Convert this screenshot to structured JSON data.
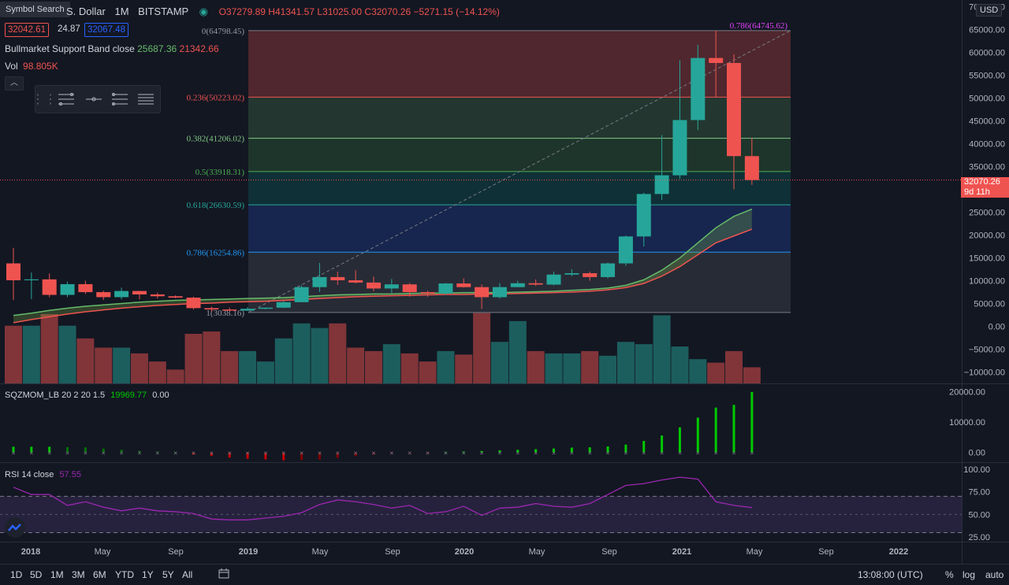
{
  "symbol_search_label": "Symbol Search",
  "header": {
    "symbol_text": "S. Dollar",
    "interval": "1M",
    "exchange": "BITSTAMP",
    "ohlc": "O37279.89 H41341.57 L31025.00 C32070.26 −5271.15 (−14.12%)"
  },
  "bid_price": "32042.61",
  "spread": "24.87",
  "ask_price": "32067.48",
  "indicators": {
    "bullmarket_band": {
      "name": "Bullmarket Support Band",
      "source": "close",
      "v1": "25687.36",
      "v2": "21342.66"
    },
    "vol": {
      "name": "Vol",
      "value": "98.805K"
    },
    "sqzmom": {
      "name": "SQZMOM_LB 20 2 20 1.5",
      "v1": "19969.77",
      "v2": "0.00"
    },
    "rsi": {
      "name": "RSI 14 close",
      "value": "57.55"
    }
  },
  "currency": "USD",
  "last_price": {
    "value": "32070.26",
    "countdown": "9d 11h",
    "color": "#ef5350"
  },
  "timeframes": [
    "1D",
    "5D",
    "1M",
    "3M",
    "6M",
    "YTD",
    "1Y",
    "5Y",
    "All"
  ],
  "bottom_right": {
    "time": "13:08:00 (UTC)",
    "percent": "%",
    "log": "log",
    "auto": "auto"
  },
  "colors": {
    "up": "#26a69a",
    "down": "#ef5350",
    "background": "#131722",
    "rsi_line": "#9c27b0",
    "sqz_up": "#00c800",
    "sqz_down": "#c80000"
  },
  "chart_data": {
    "type": "candlestick",
    "title": "U.S. Dollar 1M BITSTAMP",
    "x_time_labels": [
      "2018",
      "May",
      "Sep",
      "2019",
      "May",
      "Sep",
      "2020",
      "May",
      "Sep",
      "2021",
      "May",
      "Sep",
      "2022"
    ],
    "price_axis": {
      "ticks": [
        -10000,
        -5000,
        0,
        5000,
        10000,
        15000,
        20000,
        25000,
        30000,
        35000,
        40000,
        45000,
        50000,
        55000,
        60000,
        65000,
        70000
      ],
      "tick_labels": [
        "−10000.00",
        "−5000.00",
        "0.00",
        "5000.00",
        "10000.00",
        "15000.00",
        "20000.00",
        "25000.00",
        "30000.00",
        "35000.00",
        "40000.00",
        "45000.00",
        "50000.00",
        "55000.00",
        "60000.00",
        "65000.00",
        "70000.00"
      ],
      "range": [
        -12500,
        71500
      ]
    },
    "candles": [
      {
        "o": 13800,
        "h": 17200,
        "l": 5800,
        "c": 10100
      },
      {
        "o": 10100,
        "h": 11800,
        "l": 6000,
        "c": 10300
      },
      {
        "o": 10300,
        "h": 11600,
        "l": 6400,
        "c": 6900
      },
      {
        "o": 6900,
        "h": 9800,
        "l": 6400,
        "c": 9250
      },
      {
        "o": 9250,
        "h": 10000,
        "l": 7100,
        "c": 7500
      },
      {
        "o": 7500,
        "h": 7800,
        "l": 5800,
        "c": 6400
      },
      {
        "o": 6400,
        "h": 8500,
        "l": 5900,
        "c": 7750
      },
      {
        "o": 7750,
        "h": 7800,
        "l": 5900,
        "c": 7000
      },
      {
        "o": 7000,
        "h": 7400,
        "l": 6100,
        "c": 6600
      },
      {
        "o": 6600,
        "h": 6800,
        "l": 6200,
        "c": 6300
      },
      {
        "o": 6300,
        "h": 6500,
        "l": 3700,
        "c": 4000
      },
      {
        "o": 4000,
        "h": 4300,
        "l": 3200,
        "c": 3700
      },
      {
        "o": 3700,
        "h": 4100,
        "l": 3400,
        "c": 3450
      },
      {
        "o": 3450,
        "h": 4200,
        "l": 3400,
        "c": 3850
      },
      {
        "o": 3850,
        "h": 4100,
        "l": 3700,
        "c": 4100
      },
      {
        "o": 4100,
        "h": 5600,
        "l": 4000,
        "c": 5300
      },
      {
        "o": 5300,
        "h": 9000,
        "l": 5300,
        "c": 8600
      },
      {
        "o": 8600,
        "h": 13900,
        "l": 7500,
        "c": 10800
      },
      {
        "o": 10800,
        "h": 12000,
        "l": 9100,
        "c": 10100
      },
      {
        "o": 10100,
        "h": 12300,
        "l": 9400,
        "c": 9600
      },
      {
        "o": 9600,
        "h": 10900,
        "l": 7700,
        "c": 8300
      },
      {
        "o": 8300,
        "h": 10400,
        "l": 7300,
        "c": 9200
      },
      {
        "o": 9200,
        "h": 9500,
        "l": 6500,
        "c": 7500
      },
      {
        "o": 7500,
        "h": 7800,
        "l": 6500,
        "c": 7200
      },
      {
        "o": 7200,
        "h": 9500,
        "l": 6900,
        "c": 9400
      },
      {
        "o": 9400,
        "h": 10500,
        "l": 8500,
        "c": 8600
      },
      {
        "o": 8600,
        "h": 9200,
        "l": 3800,
        "c": 6400
      },
      {
        "o": 6400,
        "h": 9500,
        "l": 6100,
        "c": 8600
      },
      {
        "o": 8600,
        "h": 10000,
        "l": 8600,
        "c": 9450
      },
      {
        "o": 9450,
        "h": 10300,
        "l": 8900,
        "c": 9150
      },
      {
        "o": 9150,
        "h": 12000,
        "l": 9000,
        "c": 11350
      },
      {
        "o": 11350,
        "h": 12500,
        "l": 11000,
        "c": 11650
      },
      {
        "o": 11650,
        "h": 12000,
        "l": 10000,
        "c": 10800
      },
      {
        "o": 10800,
        "h": 14000,
        "l": 10500,
        "c": 13800
      },
      {
        "o": 13800,
        "h": 19900,
        "l": 13300,
        "c": 19700
      },
      {
        "o": 19700,
        "h": 29300,
        "l": 17500,
        "c": 29000
      },
      {
        "o": 29000,
        "h": 41900,
        "l": 27700,
        "c": 33100
      },
      {
        "o": 33100,
        "h": 58300,
        "l": 32300,
        "c": 45200
      },
      {
        "o": 45200,
        "h": 61700,
        "l": 43000,
        "c": 58800
      },
      {
        "o": 58800,
        "h": 64800,
        "l": 50300,
        "c": 57700
      },
      {
        "o": 57700,
        "h": 59600,
        "l": 30000,
        "c": 37300
      },
      {
        "o": 37300,
        "h": 41300,
        "l": 31000,
        "c": 32070
      }
    ],
    "bull_band_upper": [
      2400,
      2900,
      3500,
      4000,
      4400,
      4700,
      5000,
      5300,
      5500,
      5700,
      5800,
      5900,
      6000,
      6100,
      6200,
      6300,
      6500,
      6700,
      6900,
      7000,
      7100,
      7100,
      7200,
      7300,
      7300,
      7400,
      7400,
      7400,
      7500,
      7600,
      7700,
      7900,
      8100,
      8400,
      9000,
      10200,
      12300,
      15000,
      18300,
      21600,
      24100,
      25700
    ],
    "bull_band_lower": [
      800,
      1500,
      2100,
      2700,
      3200,
      3600,
      4000,
      4300,
      4600,
      4800,
      5000,
      5100,
      5300,
      5400,
      5500,
      5700,
      5900,
      6100,
      6300,
      6500,
      6600,
      6700,
      6800,
      6900,
      7000,
      7000,
      7100,
      7100,
      7200,
      7300,
      7400,
      7500,
      7700,
      8000,
      8500,
      9400,
      11000,
      13100,
      15700,
      18300,
      19800,
      21300
    ],
    "volume": [
      5,
      5,
      6,
      5,
      3.9,
      3.1,
      3.1,
      2.6,
      1.9,
      1.2,
      4.3,
      4.5,
      2.8,
      2.8,
      1.9,
      3.9,
      5.2,
      4.8,
      5.2,
      3.1,
      2.8,
      3.4,
      2.6,
      1.9,
      2.8,
      2.5,
      6.1,
      3.6,
      5.4,
      2.8,
      2.6,
      2.6,
      2.8,
      2.4,
      3.6,
      3.4,
      5.9,
      3.2,
      2.1,
      1.8,
      2.8,
      1.4
    ],
    "fib_levels": [
      {
        "ratio": "0",
        "price": 64798.45,
        "label": "0(64798.45)"
      },
      {
        "ratio": "0.236",
        "price": 50223.02,
        "label": "0.236(50223.02)"
      },
      {
        "ratio": "0.382",
        "price": 41206.02,
        "label": "0.382(41206.02)"
      },
      {
        "ratio": "0.5",
        "price": 33918.31,
        "label": "0.5(33918.31)"
      },
      {
        "ratio": "0.618",
        "price": 26630.59,
        "label": "0.618(26630.59)"
      },
      {
        "ratio": "0.786",
        "price": 16254.86,
        "label": "0.786(16254.86)"
      },
      {
        "ratio": "1",
        "price": 3038.16,
        "label": "1(3038.16)"
      }
    ],
    "fib_top_label": "0.786(64745.62)",
    "sqzmom": {
      "ticks": [
        0,
        10000,
        20000
      ],
      "tick_labels": [
        "0.00",
        "10000.00",
        "20000.00"
      ],
      "range": [
        -3200,
        22000
      ],
      "values": [
        1900,
        1900,
        1900,
        1800,
        1700,
        1300,
        900,
        500,
        300,
        100,
        -700,
        -1100,
        -1700,
        -2100,
        -2300,
        -2600,
        -2500,
        -2300,
        -1800,
        -1200,
        -700,
        -400,
        -200,
        -200,
        100,
        300,
        500,
        700,
        900,
        1100,
        1300,
        1600,
        1700,
        2000,
        2600,
        3800,
        5600,
        8300,
        11500,
        14800,
        15700,
        19970
      ]
    },
    "rsi": {
      "ticks": [
        25,
        50,
        75,
        100
      ],
      "tick_labels": [
        "25.00",
        "50.00",
        "75.00",
        "100.00"
      ],
      "range": [
        20,
        105
      ],
      "upper_band": 70,
      "lower_band": 30,
      "values": [
        80,
        72,
        72,
        60,
        64,
        58,
        54,
        57,
        54,
        53,
        51,
        45,
        44,
        44,
        46,
        48,
        52,
        61,
        66,
        64,
        61,
        57,
        60,
        51,
        53,
        59,
        49,
        57,
        58,
        62,
        59,
        58,
        62,
        72,
        82,
        84,
        88,
        91,
        89,
        64,
        60,
        57.55
      ]
    }
  }
}
